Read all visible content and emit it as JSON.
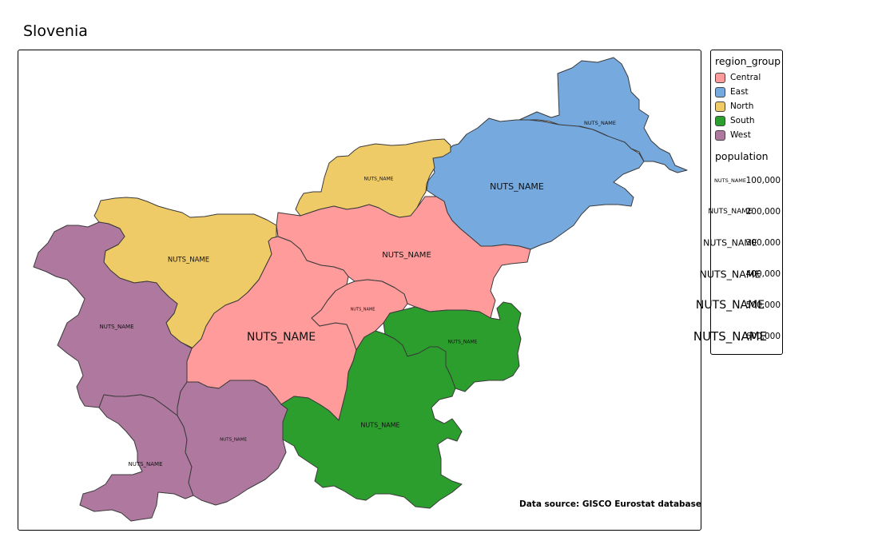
{
  "title": "Slovenia",
  "source_note": "Data source: GISCO Eurostat database",
  "colors": {
    "Central": "#FF9B9B",
    "East": "#76A9DE",
    "North": "#EFCB67",
    "South": "#2C9E2E",
    "West": "#AF789F",
    "border": "#3a3a3a"
  },
  "legend": {
    "region_title": "region_group",
    "regions": [
      {
        "label": "Central",
        "color": "#FF9B9B"
      },
      {
        "label": "East",
        "color": "#76A9DE"
      },
      {
        "label": "North",
        "color": "#EFCB67"
      },
      {
        "label": "South",
        "color": "#2C9E2E"
      },
      {
        "label": "West",
        "color": "#AF789F"
      }
    ],
    "size_title": "population",
    "sizes": [
      {
        "symbol": "NUTS_NAME",
        "value": "100,000"
      },
      {
        "symbol": "NUTS_NAME",
        "value": "200,000"
      },
      {
        "symbol": "NUTS_NAME",
        "value": "300,000"
      },
      {
        "symbol": "NUTS_NAME",
        "value": "400,000"
      },
      {
        "symbol": "NUTS_NAME",
        "value": "500,000"
      },
      {
        "symbol": "NUTS_NAME",
        "value": "600,000"
      }
    ]
  },
  "regions": [
    {
      "group": "East",
      "label": "NUTS_NAME"
    },
    {
      "group": "East",
      "label": "NUTS_NAME"
    },
    {
      "group": "North",
      "label": "NUTS_NAME"
    },
    {
      "group": "North",
      "label": "NUTS_NAME"
    },
    {
      "group": "Central",
      "label": "NUTS_NAME"
    },
    {
      "group": "Central",
      "label": "NUTS_NAME"
    },
    {
      "group": "Central",
      "label": "NUTS_NAME"
    },
    {
      "group": "West",
      "label": "NUTS_NAME"
    },
    {
      "group": "West",
      "label": "NUTS_NAME"
    },
    {
      "group": "West",
      "label": "NUTS_NAME"
    },
    {
      "group": "South",
      "label": "NUTS_NAME"
    },
    {
      "group": "South",
      "label": "NUTS_NAME"
    }
  ]
}
